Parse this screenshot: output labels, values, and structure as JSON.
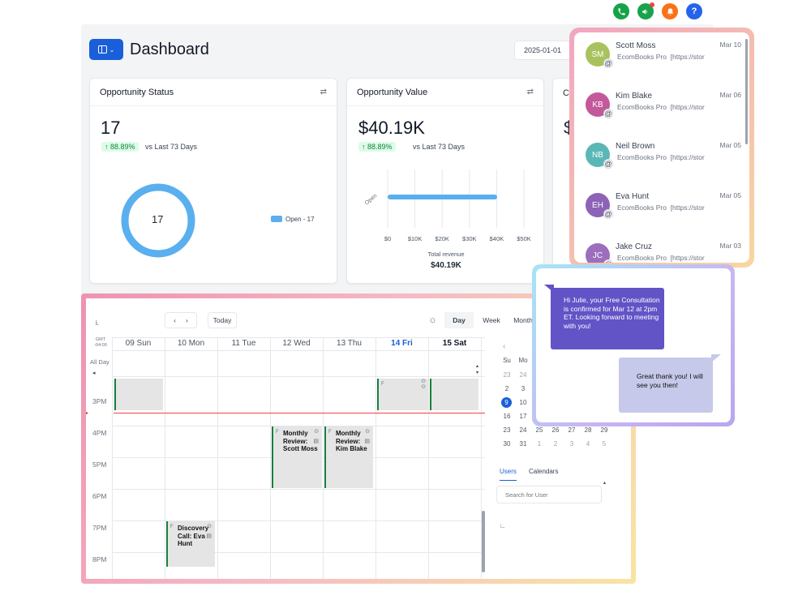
{
  "header": {
    "title": "Dashboard",
    "date": "2025-01-01"
  },
  "colors": {
    "accent": "#1a5fd9",
    "donut": "#5aafef",
    "phone": "#15a34a",
    "megaphone": "#16a34a",
    "bell": "#f97316",
    "help": "#2563eb"
  },
  "top_icons": [
    {
      "name": "phone-icon",
      "glyph": "✆"
    },
    {
      "name": "megaphone-icon",
      "glyph": "✉"
    },
    {
      "name": "bell-icon",
      "glyph": "♪"
    },
    {
      "name": "help-icon",
      "glyph": "?"
    }
  ],
  "cards": {
    "status": {
      "title": "Opportunity Status",
      "value": "17",
      "change": "↑ 88.89%",
      "compare": "vs Last 73 Days",
      "donut_center": "17",
      "legend": "Open - 17",
      "open_fraction": 1.0
    },
    "value": {
      "title": "Opportunity Value",
      "value": "$40.19K",
      "change": "↑ 88.89%",
      "compare": "vs Last 73 Days",
      "bar_label": "Open",
      "ticks": [
        "$0",
        "$10K",
        "$20K",
        "$30K",
        "$40K",
        "$50K"
      ],
      "total_label": "Total revenue",
      "total": "$40.19K"
    },
    "third": {
      "title": "Co",
      "value": "$"
    }
  },
  "chart_data": {
    "type": "bar",
    "categories": [
      "Open"
    ],
    "values": [
      40190
    ],
    "xlabel": "Total revenue",
    "xlim": [
      0,
      50000
    ]
  },
  "conversations": [
    {
      "initials": "SM",
      "name": "Scott Moss",
      "date": "Mar 10",
      "source": "EcomBooks Pro",
      "link": "[https://stor",
      "color": "#a9c25e"
    },
    {
      "initials": "KB",
      "name": "Kim Blake",
      "date": "Mar 06",
      "source": "EcomBooks Pro",
      "link": "[https://stor",
      "color": "#c3589b"
    },
    {
      "initials": "NB",
      "name": "Neil Brown",
      "date": "Mar 05",
      "source": "EcomBooks Pro",
      "link": "[https://stor",
      "color": "#5ab7b5"
    },
    {
      "initials": "EH",
      "name": "Eva Hunt",
      "date": "Mar 05",
      "source": "EcomBooks Pro",
      "link": "[https://stor",
      "color": "#8c63b6"
    },
    {
      "initials": "JC",
      "name": "Jake Cruz",
      "date": "Mar 03",
      "source": "EcomBooks Pro",
      "link": "[https://stor",
      "color": "#9b6fbd"
    }
  ],
  "calendar": {
    "today_btn": "Today",
    "views": [
      "Day",
      "Week",
      "Month"
    ],
    "gmt": "GMT -04:00",
    "allday": "All Day",
    "days": [
      "09 Sun",
      "10 Mon",
      "11 Tue",
      "12 Wed",
      "13 Thu",
      "14 Fri",
      "15 Sat"
    ],
    "hours": [
      "3PM",
      "4PM",
      "5PM",
      "6PM",
      "7PM",
      "8PM"
    ],
    "events": [
      {
        "title": "Monthly Review: Scott Moss"
      },
      {
        "title": "Monthly Review: Kim Blake"
      },
      {
        "title": "Discovery Call: Eva Hunt"
      }
    ],
    "mini_head": [
      "Su",
      "Mo"
    ],
    "mini_rows": [
      [
        "23",
        "24"
      ],
      [
        "2",
        "3"
      ],
      [
        "9",
        "10"
      ],
      [
        "16",
        "17"
      ],
      [
        "23",
        "24",
        "25",
        "26",
        "27",
        "28",
        "29"
      ],
      [
        "30",
        "31",
        "1",
        "2",
        "3",
        "4",
        "5"
      ]
    ],
    "tabs": [
      "Users",
      "Calendars"
    ],
    "search_placeholder": "Search for User"
  },
  "sms": {
    "incoming": "Hi Julie, your Free Consultation is confirmed for Mar 12 at 2pm ET. Looking forward to meeting with you!",
    "reply": "Great thank you! I will see you then!"
  }
}
